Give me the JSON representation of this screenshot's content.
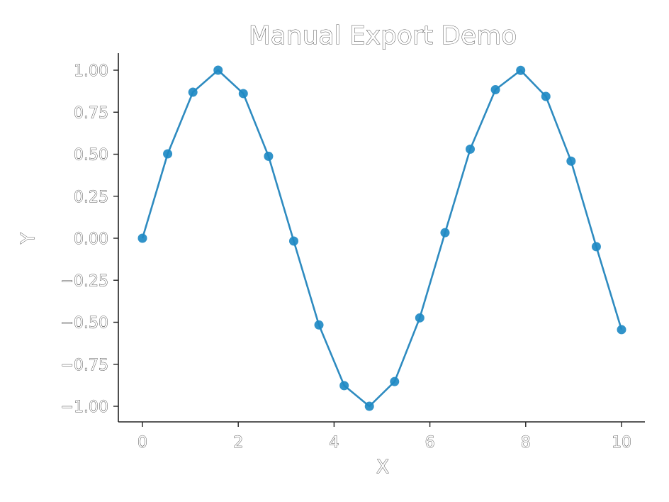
{
  "chart_data": {
    "type": "line",
    "title": "Manual Export Demo",
    "xlabel": "X",
    "ylabel": "Y",
    "xlim": [
      -0.5,
      10.5
    ],
    "ylim": [
      -1.1,
      1.1
    ],
    "xticks": [
      0,
      2,
      4,
      6,
      8,
      10
    ],
    "xtick_labels": [
      "0",
      "2",
      "4",
      "6",
      "8",
      "10"
    ],
    "yticks": [
      1.0,
      0.75,
      0.5,
      0.25,
      0.0,
      -0.25,
      -0.5,
      -0.75,
      -1.0
    ],
    "ytick_labels": [
      "1.00",
      "0.75",
      "0.50",
      "0.25",
      "0.00",
      "−0.25",
      "−0.50",
      "−0.75",
      "−1.00"
    ],
    "grid": false,
    "line_color": "#2e8bc0",
    "marker_color": "#1f8ac4",
    "series": [
      {
        "x": [
          0.0,
          0.526,
          1.053,
          1.579,
          2.105,
          2.632,
          3.158,
          3.684,
          4.211,
          4.737,
          5.263,
          5.789,
          6.316,
          6.842,
          7.368,
          7.895,
          8.421,
          8.947,
          9.474,
          10.0
        ],
        "values": [
          0.0,
          0.502,
          0.869,
          1.0,
          0.861,
          0.488,
          -0.017,
          -0.516,
          -0.877,
          -1.0,
          -0.853,
          -0.474,
          0.033,
          0.53,
          0.884,
          0.999,
          0.844,
          0.459,
          -0.05,
          -0.544
        ]
      }
    ]
  }
}
